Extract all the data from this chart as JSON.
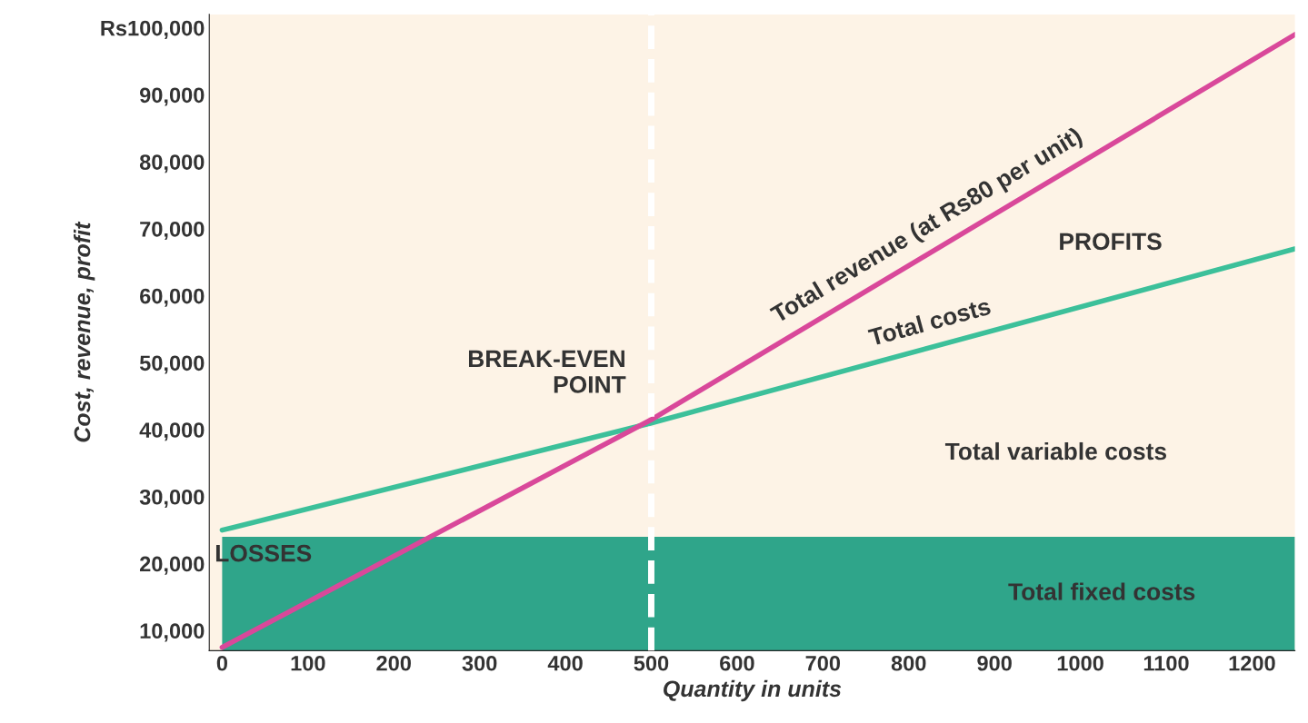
{
  "chart_data": {
    "type": "line",
    "xlabel": "Quantity in units",
    "ylabel": "Cost, revenue, profit",
    "x": [
      0,
      500,
      1250
    ],
    "series": [
      {
        "name": "Total fixed costs",
        "type": "area",
        "color": "#2fa58a",
        "values": [
          24000,
          24000,
          24000
        ]
      },
      {
        "name": "Total costs",
        "type": "line",
        "color": "#3cc09a",
        "values": [
          25000,
          41000,
          67000
        ]
      },
      {
        "name": "Total revenue (at Rs80 per unit)",
        "type": "line",
        "color": "#d9489a",
        "values": [
          7500,
          41500,
          99000
        ]
      }
    ],
    "xlim": [
      -15,
      1250
    ],
    "ylim": [
      7000,
      102000
    ],
    "xticks": [
      0,
      100,
      200,
      300,
      400,
      500,
      600,
      700,
      800,
      900,
      1000,
      1100,
      1200
    ],
    "yticks": [
      {
        "value": 10000,
        "label": "10,000"
      },
      {
        "value": 20000,
        "label": "20,000"
      },
      {
        "value": 30000,
        "label": "30,000"
      },
      {
        "value": 40000,
        "label": "40,000"
      },
      {
        "value": 50000,
        "label": "50,000"
      },
      {
        "value": 60000,
        "label": "60,000"
      },
      {
        "value": 70000,
        "label": "70,000"
      },
      {
        "value": 80000,
        "label": "80,000"
      },
      {
        "value": 90000,
        "label": "90,000"
      },
      {
        "value": 100000,
        "label": "Rs100,000"
      }
    ],
    "ref_lines": [
      {
        "axis": "x",
        "value": 500,
        "color": "#ffffff",
        "line_style": "dashed"
      }
    ],
    "annotations": [
      {
        "text": "BREAK-EVEN\nPOINT",
        "x": 500,
        "y": 41000
      },
      "PROFITS",
      "Total variable costs",
      "LOSSES"
    ],
    "grid": false,
    "legend": false
  }
}
